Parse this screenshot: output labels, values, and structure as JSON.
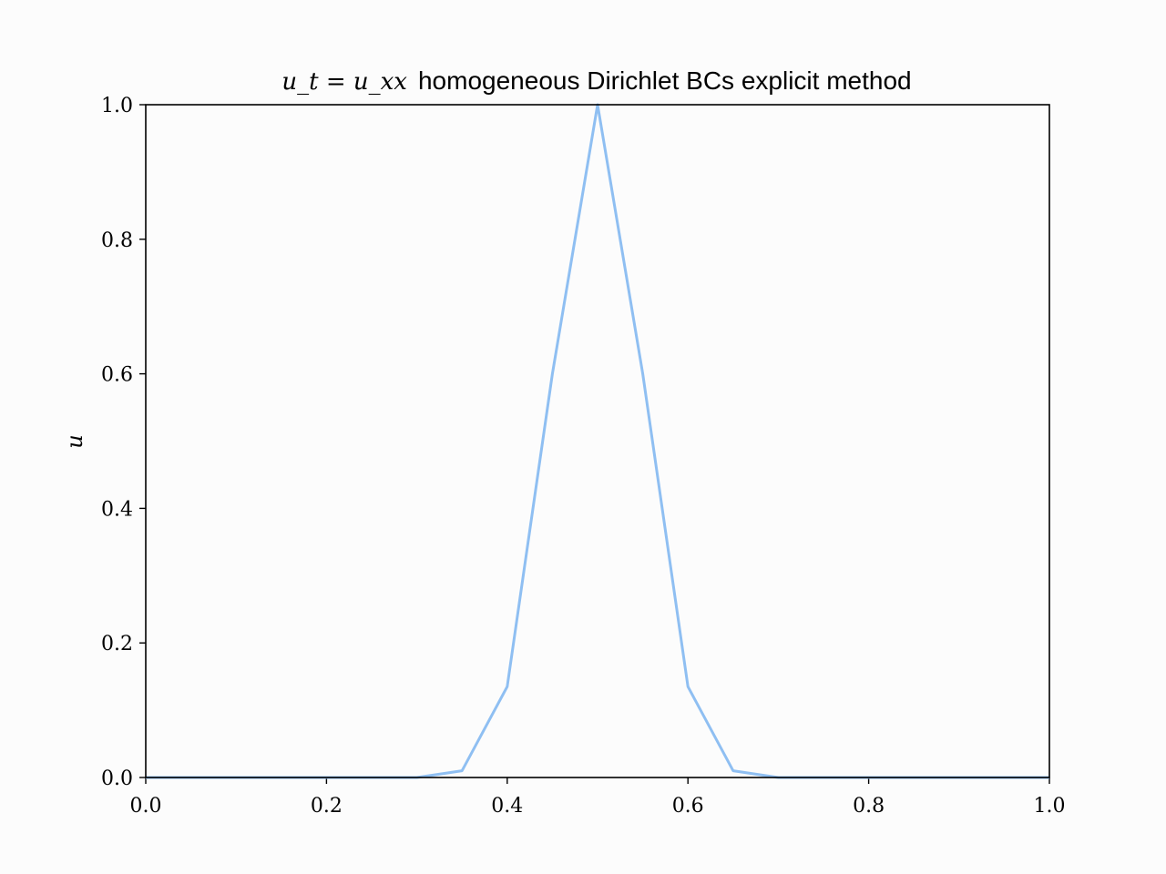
{
  "chart_data": {
    "type": "line",
    "title": {
      "math": "u_t = u_xx",
      "text": "homogeneous Dirichlet BCs explicit method"
    },
    "xlabel": "",
    "ylabel": "u",
    "xlim": [
      0.0,
      1.0
    ],
    "ylim": [
      0.0,
      1.0
    ],
    "x_ticks": [
      "0.0",
      "0.2",
      "0.4",
      "0.6",
      "0.8",
      "1.0"
    ],
    "y_ticks": [
      "0.0",
      "0.2",
      "0.4",
      "0.6",
      "0.8",
      "1.0"
    ],
    "grid": false,
    "line_color": "#8fbff2",
    "series": [
      {
        "x": [
          0.0,
          0.05,
          0.1,
          0.15,
          0.2,
          0.25,
          0.3,
          0.35,
          0.4,
          0.45,
          0.5,
          0.55,
          0.6,
          0.65,
          0.7,
          0.75,
          0.8,
          0.85,
          0.9,
          0.95,
          1.0
        ],
        "values": [
          0.0,
          0.0,
          0.0,
          0.0,
          0.0,
          0.0,
          0.0,
          0.01,
          0.135,
          0.6,
          1.0,
          0.6,
          0.135,
          0.01,
          0.0,
          0.0,
          0.0,
          0.0,
          0.0,
          0.0,
          0.0
        ]
      }
    ]
  }
}
